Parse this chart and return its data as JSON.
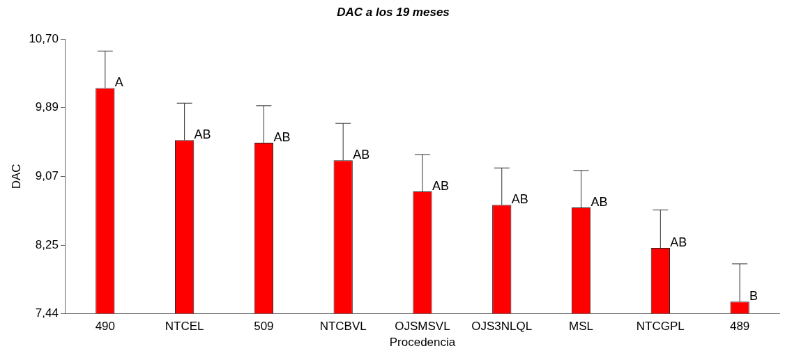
{
  "chart_data": {
    "type": "bar",
    "title": "DAC a los 19 meses",
    "xlabel": "Procedencia",
    "ylabel": "DAC",
    "categories": [
      "490",
      "NTCEL",
      "509",
      "NTCBVL",
      "OJSMSVL",
      "OJS3NLQL",
      "MSL",
      "NTCGPL",
      "489"
    ],
    "values": [
      10.12,
      9.5,
      9.47,
      9.26,
      8.89,
      8.73,
      8.7,
      8.22,
      7.58
    ],
    "errors": [
      [
        10.12,
        10.56
      ],
      [
        9.5,
        9.94
      ],
      [
        9.47,
        9.91
      ],
      [
        9.26,
        9.7
      ],
      [
        8.89,
        9.33
      ],
      [
        8.73,
        9.17
      ],
      [
        8.7,
        9.14
      ],
      [
        8.22,
        8.67
      ],
      [
        7.58,
        8.03
      ]
    ],
    "value_labels": [
      "A",
      "AB",
      "AB",
      "AB",
      "AB",
      "AB",
      "AB",
      "AB",
      "B"
    ],
    "color": "#ff0000",
    "ylim": [
      7.44,
      10.7
    ],
    "yticks": [
      {
        "value": 7.44,
        "label": "7,44"
      },
      {
        "value": 8.25,
        "label": "8,25"
      },
      {
        "value": 9.07,
        "label": "9,07"
      },
      {
        "value": 9.89,
        "label": "9,89"
      },
      {
        "value": 10.7,
        "label": "10,70"
      }
    ],
    "grid": false,
    "legend": false
  }
}
